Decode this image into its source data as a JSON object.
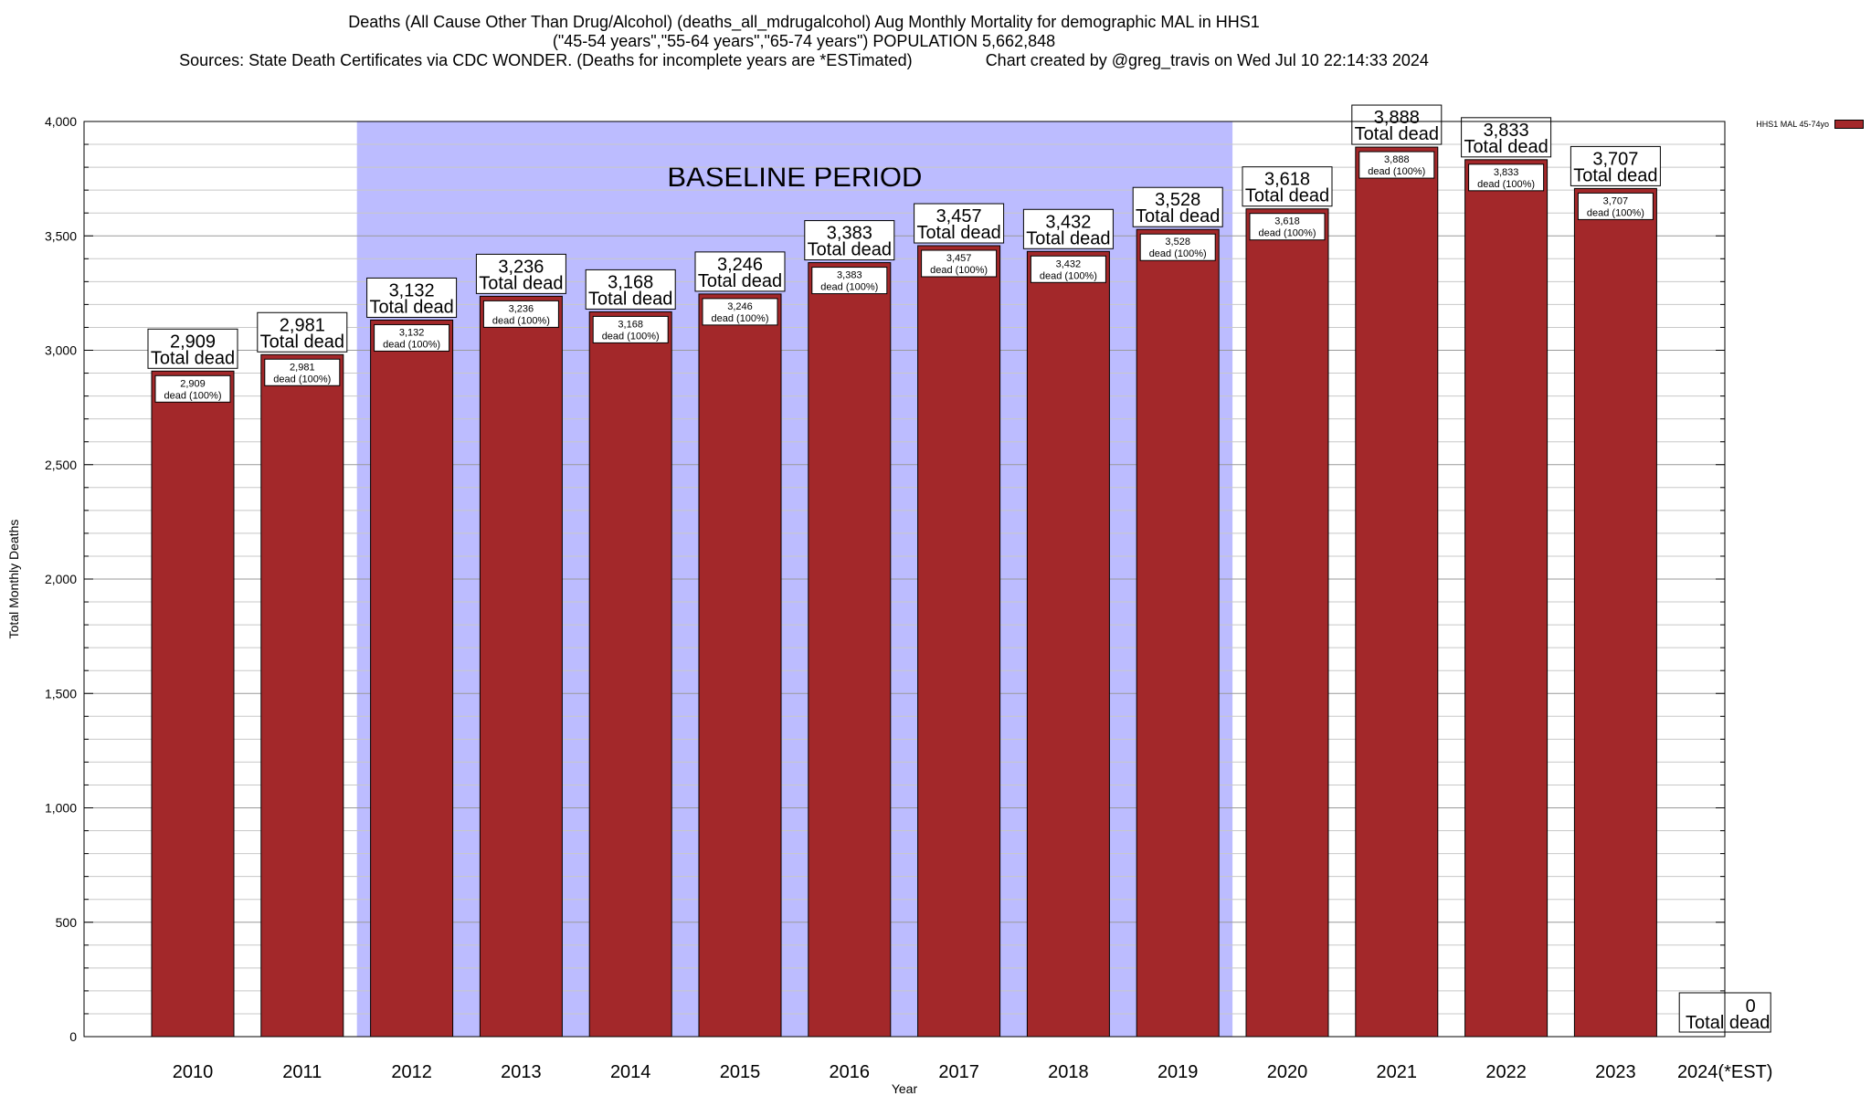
{
  "chart_data": {
    "type": "bar",
    "title": "Deaths (All Cause Other Than Drug/Alcohol) (deaths_all_mdrugalcohol) Aug Monthly Mortality for demographic MAL in HHS1",
    "subtitle": "(\"45-54 years\",\"55-64 years\",\"65-74 years\") POPULATION 5,662,848",
    "sources": "Sources: State Death Certificates via CDC WONDER. (Deaths for incomplete years are *ESTimated)",
    "credit": "Chart created by @greg_travis on Wed Jul 10 22:14:33 2024",
    "xlabel": "Year",
    "ylabel": "Total Monthly Deaths",
    "ylim": [
      0,
      4000
    ],
    "yticks": [
      0,
      500,
      1000,
      1500,
      2000,
      2500,
      3000,
      3500,
      4000
    ],
    "ytick_labels": [
      "0",
      "500",
      "1,000",
      "1,500",
      "2,000",
      "2,500",
      "3,000",
      "3,500",
      "4,000"
    ],
    "categories": [
      "2010",
      "2011",
      "2012",
      "2013",
      "2014",
      "2015",
      "2016",
      "2017",
      "2018",
      "2019",
      "2020",
      "2021",
      "2022",
      "2023",
      "2024(*EST)"
    ],
    "series": [
      {
        "name": "HHS1 MAL 45-74yo",
        "color": "#a3282a",
        "values": [
          2909,
          2981,
          3132,
          3236,
          3168,
          3246,
          3383,
          3457,
          3432,
          3528,
          3618,
          3888,
          3833,
          3707,
          0
        ]
      }
    ],
    "value_labels": [
      "2,909",
      "2,981",
      "3,132",
      "3,236",
      "3,168",
      "3,246",
      "3,383",
      "3,457",
      "3,432",
      "3,528",
      "3,618",
      "3,888",
      "3,833",
      "3,707",
      "0"
    ],
    "total_label": "Total dead",
    "inner_label_suffix": "dead (100%)",
    "baseline": {
      "label": "BASELINE PERIOD",
      "from": "2012",
      "to": "2019",
      "color": "#bcbcff"
    },
    "grid": "horizontal",
    "legend_position": "top-right"
  }
}
